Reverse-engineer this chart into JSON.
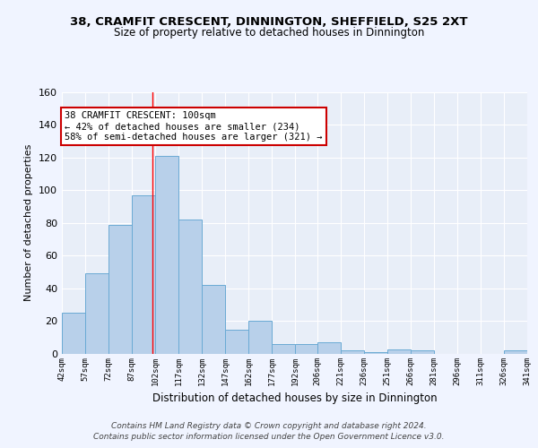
{
  "title": "38, CRAMFIT CRESCENT, DINNINGTON, SHEFFIELD, S25 2XT",
  "subtitle": "Size of property relative to detached houses in Dinnington",
  "xlabel": "Distribution of detached houses by size in Dinnington",
  "ylabel": "Number of detached properties",
  "bin_edges": [
    42,
    57,
    72,
    87,
    102,
    117,
    132,
    147,
    162,
    177,
    192,
    206,
    221,
    236,
    251,
    266,
    281,
    296,
    311,
    326,
    341
  ],
  "bin_counts": [
    25,
    49,
    79,
    97,
    121,
    82,
    42,
    15,
    20,
    6,
    6,
    7,
    2,
    1,
    3,
    2,
    0,
    0,
    0,
    2
  ],
  "bar_color": "#b8d0ea",
  "bar_edge_color": "#6aaad4",
  "red_line_x": 100,
  "annotation_line1": "38 CRAMFIT CRESCENT: 100sqm",
  "annotation_line2": "← 42% of detached houses are smaller (234)",
  "annotation_line3": "58% of semi-detached houses are larger (321) →",
  "annotation_box_color": "#ffffff",
  "annotation_box_edge_color": "#cc0000",
  "footer_text": "Contains HM Land Registry data © Crown copyright and database right 2024.\nContains public sector information licensed under the Open Government Licence v3.0.",
  "plot_bg_color": "#e8eef8",
  "fig_bg_color": "#f0f4ff",
  "ylim": [
    0,
    160
  ],
  "yticks": [
    0,
    20,
    40,
    60,
    80,
    100,
    120,
    140,
    160
  ],
  "grid_color": "#ffffff",
  "tick_labels": [
    "42sqm",
    "57sqm",
    "72sqm",
    "87sqm",
    "102sqm",
    "117sqm",
    "132sqm",
    "147sqm",
    "162sqm",
    "177sqm",
    "192sqm",
    "206sqm",
    "221sqm",
    "236sqm",
    "251sqm",
    "266sqm",
    "281sqm",
    "296sqm",
    "311sqm",
    "326sqm",
    "341sqm"
  ],
  "title_fontsize": 9.5,
  "subtitle_fontsize": 8.5,
  "ylabel_fontsize": 8,
  "xlabel_fontsize": 8.5,
  "ytick_fontsize": 8,
  "xtick_fontsize": 6.5,
  "annotation_fontsize": 7.5,
  "footer_fontsize": 6.5
}
